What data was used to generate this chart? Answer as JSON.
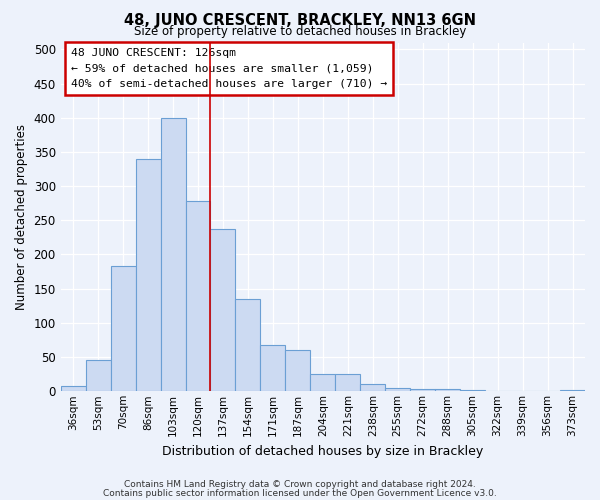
{
  "title": "48, JUNO CRESCENT, BRACKLEY, NN13 6GN",
  "subtitle": "Size of property relative to detached houses in Brackley",
  "xlabel": "Distribution of detached houses by size in Brackley",
  "ylabel": "Number of detached properties",
  "bar_labels": [
    "36sqm",
    "53sqm",
    "70sqm",
    "86sqm",
    "103sqm",
    "120sqm",
    "137sqm",
    "154sqm",
    "171sqm",
    "187sqm",
    "204sqm",
    "221sqm",
    "238sqm",
    "255sqm",
    "272sqm",
    "288sqm",
    "305sqm",
    "322sqm",
    "339sqm",
    "356sqm",
    "373sqm"
  ],
  "bar_heights": [
    8,
    46,
    183,
    340,
    400,
    278,
    238,
    135,
    68,
    60,
    25,
    25,
    10,
    5,
    3,
    3,
    2,
    1,
    1,
    1,
    2
  ],
  "bar_color": "#ccdaf2",
  "bar_edge_color": "#6b9fd4",
  "vline_color": "#cc0000",
  "annotation_title": "48 JUNO CRESCENT: 126sqm",
  "annotation_line1": "← 59% of detached houses are smaller (1,059)",
  "annotation_line2": "40% of semi-detached houses are larger (710) →",
  "annotation_box_color": "#cc0000",
  "ylim": [
    0,
    510
  ],
  "yticks": [
    0,
    50,
    100,
    150,
    200,
    250,
    300,
    350,
    400,
    450,
    500
  ],
  "footer1": "Contains HM Land Registry data © Crown copyright and database right 2024.",
  "footer2": "Contains public sector information licensed under the Open Government Licence v3.0.",
  "bg_color": "#edf2fb",
  "plot_bg_color": "#edf2fb",
  "grid_color": "#ffffff",
  "title_fontsize": 10.5,
  "subtitle_fontsize": 8.5
}
